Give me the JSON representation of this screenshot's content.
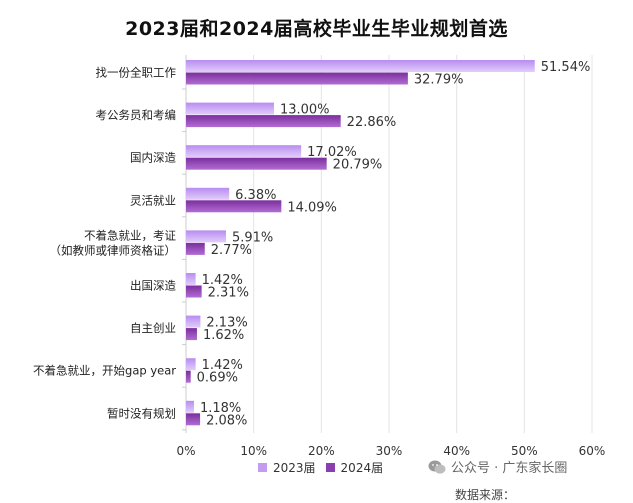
{
  "watermark": {
    "text": "公众号 · 广东家长圈"
  },
  "source": {
    "text": "数据来源："
  },
  "chart_data": {
    "type": "bar",
    "orientation": "horizontal",
    "title": "2023届和2024届高校毕业生毕业规划首选",
    "categories": [
      "找一份全职工作",
      "考公务员和考编",
      "国内深造",
      "灵活就业",
      [
        "不着急就业，考证",
        "（如教师或律师资格证）"
      ],
      "出国深造",
      "自主创业",
      "不着急就业，开始gap year",
      "暂时没有规划"
    ],
    "series": [
      {
        "name": "2023届",
        "color": "#c39cf2",
        "values": [
          51.54,
          13.0,
          17.02,
          6.38,
          5.91,
          1.42,
          2.13,
          1.42,
          1.18
        ],
        "labels": [
          "51.54%",
          "13.00%",
          "17.02%",
          "6.38%",
          "5.91%",
          "1.42%",
          "2.13%",
          "1.42%",
          "1.18%"
        ]
      },
      {
        "name": "2024届",
        "color": "#8a3fb0",
        "values": [
          32.79,
          22.86,
          20.79,
          14.09,
          2.77,
          2.31,
          1.62,
          0.69,
          2.08
        ],
        "labels": [
          "32.79%",
          "22.86%",
          "20.79%",
          "14.09%",
          "2.77%",
          "2.31%",
          "1.62%",
          "0.69%",
          "2.08%"
        ]
      }
    ],
    "xlim": [
      0,
      60
    ],
    "xticks": [
      "0%",
      "10%",
      "20%",
      "30%",
      "40%",
      "50%",
      "60%"
    ],
    "grid": true,
    "legend": "bottom"
  }
}
